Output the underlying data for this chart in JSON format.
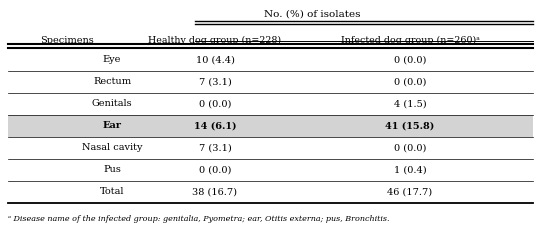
{
  "title": "No. (%) of isolates",
  "col_header_1": "Specimens",
  "col_header_2": "Healthy dog group (n=228)",
  "col_header_3": "Infected dog group (n=260)ᵃ",
  "rows": [
    [
      "Eye",
      "10 (4.4)",
      "0 (0.0)"
    ],
    [
      "Rectum",
      "7 (3.1)",
      "0 (0.0)"
    ],
    [
      "Genitals",
      "0 (0.0)",
      "4 (1.5)"
    ],
    [
      "Ear",
      "14 (6.1)",
      "41 (15.8)"
    ],
    [
      "Nasal cavity",
      "7 (3.1)",
      "0 (0.0)"
    ],
    [
      "Pus",
      "0 (0.0)",
      "1 (0.4)"
    ],
    [
      "Total",
      "38 (16.7)",
      "46 (17.7)"
    ]
  ],
  "highlighted_row": 3,
  "highlight_color": "#d3d3d3",
  "footnote": "ᵃ Disease name of the infected group: genitalia, Pyometra; ear, Otitis externa; pus, Bronchitis.",
  "fig_width": 5.41,
  "fig_height": 2.49,
  "dpi": 100
}
